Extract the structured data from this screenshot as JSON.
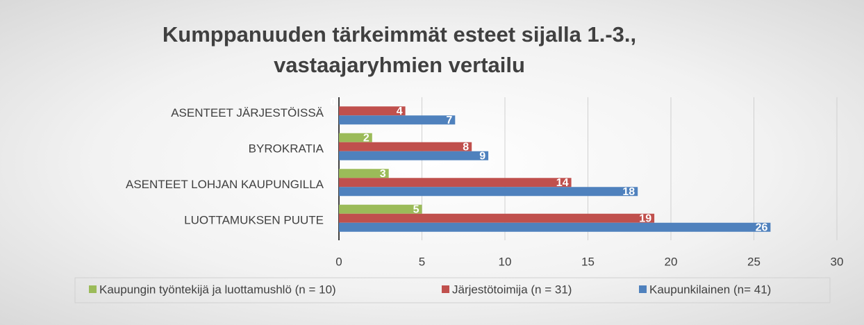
{
  "chart_data": {
    "type": "hbar",
    "title": "Kumppanuuden tärkeimmät esteet sijalla 1.-3., vastaajaryhmien vertailu",
    "categories": [
      "ASENTEET JÄRJESTÖISSÄ",
      "BYROKRATIA",
      "ASENTEET LOHJAN KAUPUNGILLA",
      "LUOTTAMUKSEN PUUTE"
    ],
    "series": [
      {
        "name": "Kaupungin työntekijä ja luottamushlö (n = 10)",
        "color": "#9bbb59",
        "values": [
          0,
          2,
          3,
          5
        ]
      },
      {
        "name": "Järjestötoimija  (n = 31)",
        "color": "#c0504d",
        "values": [
          4,
          8,
          14,
          19
        ]
      },
      {
        "name": "Kaupunkilainen  (n= 41)",
        "color": "#4f81bd",
        "values": [
          7,
          9,
          18,
          26
        ]
      }
    ],
    "xlim": [
      0,
      30
    ],
    "xticks": [
      0,
      5,
      10,
      15,
      20,
      25,
      30
    ],
    "grid": true,
    "legend": "bottom"
  }
}
